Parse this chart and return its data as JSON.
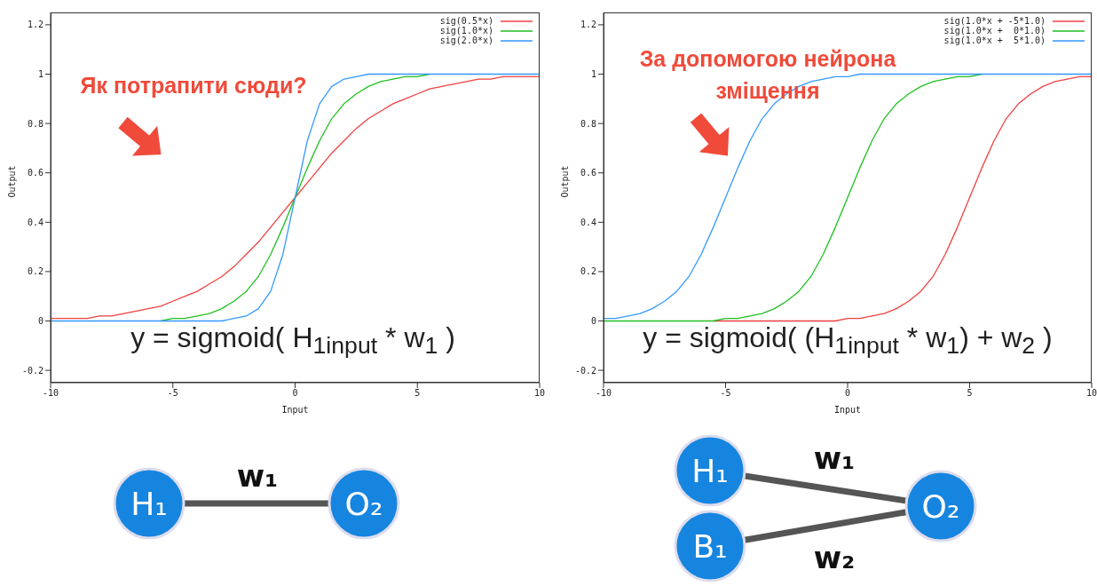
{
  "chart_data": [
    {
      "type": "line",
      "xlabel": "Input",
      "ylabel": "Output",
      "xlim": [
        -10,
        10
      ],
      "xticks": [
        -10,
        -5,
        0,
        5,
        10
      ],
      "ylim": [
        -0.25,
        1.25
      ],
      "yticks": [
        -0.2,
        0,
        0.2,
        0.4,
        0.6,
        0.8,
        1,
        1.2
      ],
      "legend": "top right",
      "x": [
        -10,
        -9.5,
        -9,
        -8.5,
        -8,
        -7.5,
        -7,
        -6.5,
        -6,
        -5.5,
        -5,
        -4.5,
        -4,
        -3.5,
        -3,
        -2.5,
        -2,
        -1.5,
        -1,
        -0.5,
        0,
        0.5,
        1,
        1.5,
        2,
        2.5,
        3,
        3.5,
        4,
        4.5,
        5,
        5.5,
        6,
        6.5,
        7,
        7.5,
        8,
        8.5,
        9,
        9.5,
        10
      ],
      "series": [
        {
          "name": "sig(0.5*x)",
          "color": "#f04040",
          "values": [
            0.01,
            0.01,
            0.01,
            0.01,
            0.02,
            0.02,
            0.03,
            0.04,
            0.05,
            0.06,
            0.08,
            0.1,
            0.12,
            0.15,
            0.18,
            0.22,
            0.27,
            0.32,
            0.38,
            0.44,
            0.5,
            0.56,
            0.62,
            0.68,
            0.73,
            0.78,
            0.82,
            0.85,
            0.88,
            0.9,
            0.92,
            0.94,
            0.95,
            0.96,
            0.97,
            0.98,
            0.98,
            0.99,
            0.99,
            0.99,
            0.99
          ]
        },
        {
          "name": "sig(1.0*x)",
          "color": "#20c020",
          "values": [
            null,
            null,
            null,
            null,
            null,
            null,
            null,
            null,
            null,
            0,
            0.01,
            0.01,
            0.02,
            0.03,
            0.05,
            0.08,
            0.12,
            0.18,
            0.27,
            0.38,
            0.5,
            0.62,
            0.73,
            0.82,
            0.88,
            0.92,
            0.95,
            0.97,
            0.98,
            0.99,
            0.99,
            1,
            null,
            null,
            null,
            null,
            null,
            null,
            null,
            null,
            null
          ]
        },
        {
          "name": "sig(2.0*x)",
          "color": "#3399ff",
          "values": [
            0,
            0,
            0,
            0,
            0,
            0,
            0,
            0,
            0,
            0,
            0,
            0,
            0,
            0,
            0,
            0.01,
            0.02,
            0.05,
            0.12,
            0.27,
            0.5,
            0.73,
            0.88,
            0.95,
            0.98,
            0.99,
            1,
            1,
            1,
            1,
            1,
            1,
            1,
            1,
            1,
            1,
            1,
            1,
            1,
            1,
            1
          ]
        }
      ],
      "annotations": [
        "Як потрапити сюди?",
        "y = sigmoid( H$_{1input}$ * w$_{1}$ )",
        "H₁",
        "O₂",
        "w₁"
      ]
    },
    {
      "type": "line",
      "xlabel": "Input",
      "ylabel": "Output",
      "xlim": [
        -10,
        10
      ],
      "xticks": [
        -10,
        -5,
        0,
        5,
        10
      ],
      "ylim": [
        -0.25,
        1.25
      ],
      "yticks": [
        -0.2,
        0,
        0.2,
        0.4,
        0.6,
        0.8,
        1,
        1.2
      ],
      "legend": "top right",
      "x": [
        -10,
        -9.5,
        -9,
        -8.5,
        -8,
        -7.5,
        -7,
        -6.5,
        -6,
        -5.5,
        -5,
        -4.5,
        -4,
        -3.5,
        -3,
        -2.5,
        -2,
        -1.5,
        -1,
        -0.5,
        0,
        0.5,
        1,
        1.5,
        2,
        2.5,
        3,
        3.5,
        4,
        4.5,
        5,
        5.5,
        6,
        6.5,
        7,
        7.5,
        8,
        8.5,
        9,
        9.5,
        10
      ],
      "series": [
        {
          "name": "sig(1.0*x + -5*1.0)",
          "color": "#f04040",
          "values": [
            null,
            null,
            null,
            null,
            null,
            null,
            null,
            null,
            null,
            0,
            0,
            0,
            0,
            0,
            0,
            0,
            0,
            0,
            0,
            0,
            0.01,
            0.01,
            0.02,
            0.03,
            0.05,
            0.08,
            0.12,
            0.18,
            0.27,
            0.38,
            0.5,
            0.62,
            0.73,
            0.82,
            0.88,
            0.92,
            0.95,
            0.97,
            0.98,
            0.99,
            0.99
          ]
        },
        {
          "name": "sig(1.0*x +  0*1.0)",
          "color": "#20c020",
          "values": [
            0,
            0,
            0,
            0,
            0,
            0,
            0,
            0,
            0,
            0,
            0.01,
            0.01,
            0.02,
            0.03,
            0.05,
            0.08,
            0.12,
            0.18,
            0.27,
            0.38,
            0.5,
            0.62,
            0.73,
            0.82,
            0.88,
            0.92,
            0.95,
            0.97,
            0.98,
            0.99,
            0.99,
            1,
            null,
            null,
            null,
            null,
            null,
            null,
            null,
            null,
            null
          ]
        },
        {
          "name": "sig(1.0*x +  5*1.0)",
          "color": "#3399ff",
          "values": [
            0.01,
            0.01,
            0.02,
            0.03,
            0.05,
            0.08,
            0.12,
            0.18,
            0.27,
            0.38,
            0.5,
            0.62,
            0.73,
            0.82,
            0.88,
            0.92,
            0.95,
            0.97,
            0.98,
            0.99,
            0.99,
            1,
            1,
            1,
            1,
            1,
            1,
            1,
            1,
            1,
            1,
            1,
            1,
            1,
            1,
            1,
            1,
            1,
            1,
            1,
            1
          ]
        }
      ],
      "annotations": [
        "За допомогою нейрона зміщення",
        "y = sigmoid( (H$_{1input}$ * w$_{1}$) + w$_{2}$ )",
        "H₁",
        "B₁",
        "O₂",
        "w₁",
        "w₂"
      ]
    }
  ]
}
